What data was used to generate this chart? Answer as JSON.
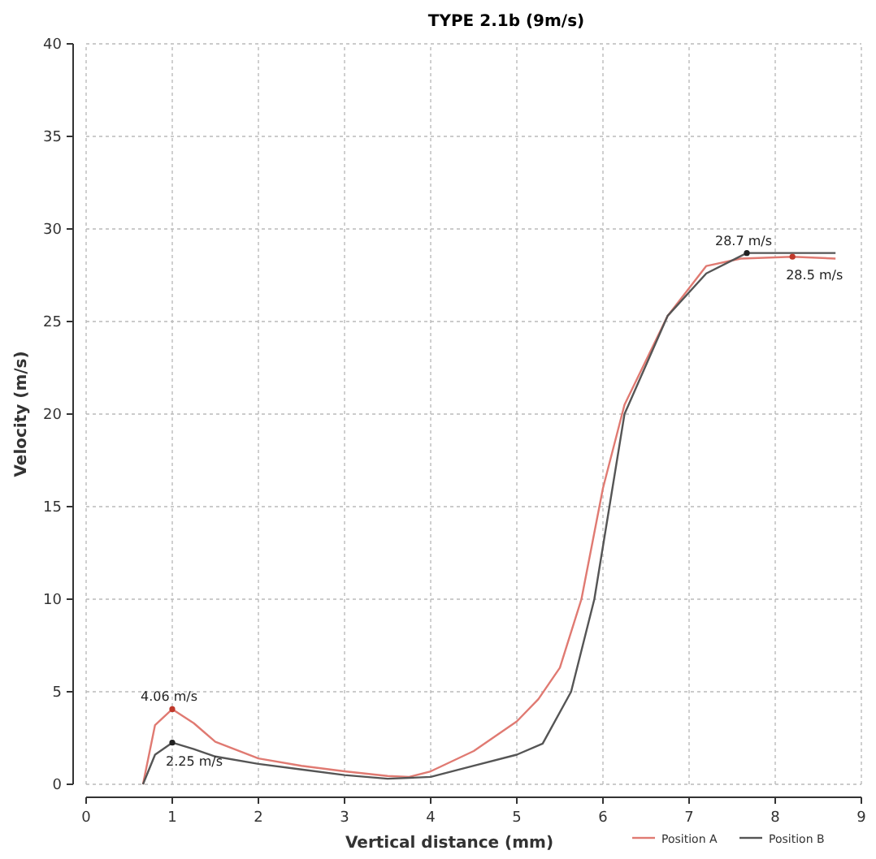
{
  "chart_data": {
    "type": "line",
    "title": "TYPE 2.1b (9m/s)",
    "xlabel": "Vertical distance (mm)",
    "ylabel": "Velocity (m/s)",
    "xlim": [
      0,
      9
    ],
    "ylim": [
      0,
      40
    ],
    "xticks": [
      0,
      1,
      2,
      3,
      4,
      5,
      6,
      7,
      8,
      9
    ],
    "yticks": [
      0,
      5,
      10,
      15,
      20,
      25,
      30,
      35,
      40
    ],
    "grid": true,
    "legend": "bottom right",
    "line_style": "solid",
    "series": [
      {
        "name": "Position A",
        "color": "#e07a72",
        "x": [
          0.66,
          0.8,
          1.0,
          1.25,
          1.5,
          2.0,
          2.5,
          3.0,
          3.5,
          3.75,
          4.0,
          4.5,
          5.0,
          5.25,
          5.5,
          5.75,
          6.0,
          6.25,
          6.75,
          7.2,
          7.6,
          8.2,
          8.7
        ],
        "values": [
          0,
          3.2,
          4.06,
          3.3,
          2.3,
          1.4,
          1.0,
          0.7,
          0.45,
          0.4,
          0.7,
          1.8,
          3.4,
          4.6,
          6.3,
          10,
          16,
          20.5,
          25.3,
          28,
          28.4,
          28.5,
          28.4
        ]
      },
      {
        "name": "Position B",
        "color": "#555555",
        "x": [
          0.66,
          0.8,
          1.0,
          1.25,
          1.5,
          2.0,
          2.5,
          3.0,
          3.5,
          4.0,
          4.5,
          5.0,
          5.3,
          5.63,
          5.9,
          6.25,
          6.75,
          7.2,
          7.67,
          8.2,
          8.7
        ],
        "values": [
          0,
          1.6,
          2.25,
          1.9,
          1.5,
          1.1,
          0.8,
          0.5,
          0.3,
          0.4,
          1.0,
          1.6,
          2.2,
          5,
          10,
          20,
          25.3,
          27.6,
          28.7,
          28.7,
          28.7
        ]
      }
    ],
    "annotations": [
      {
        "text": "4.06 m/s",
        "x": 1.0,
        "y": 4.06
      },
      {
        "text": "2.25 m/s",
        "x": 1.0,
        "y": 2.25
      },
      {
        "text": "28.7 m/s",
        "x": 7.67,
        "y": 28.7
      },
      {
        "text": "28.5 m/s",
        "x": 8.2,
        "y": 28.5
      }
    ]
  }
}
